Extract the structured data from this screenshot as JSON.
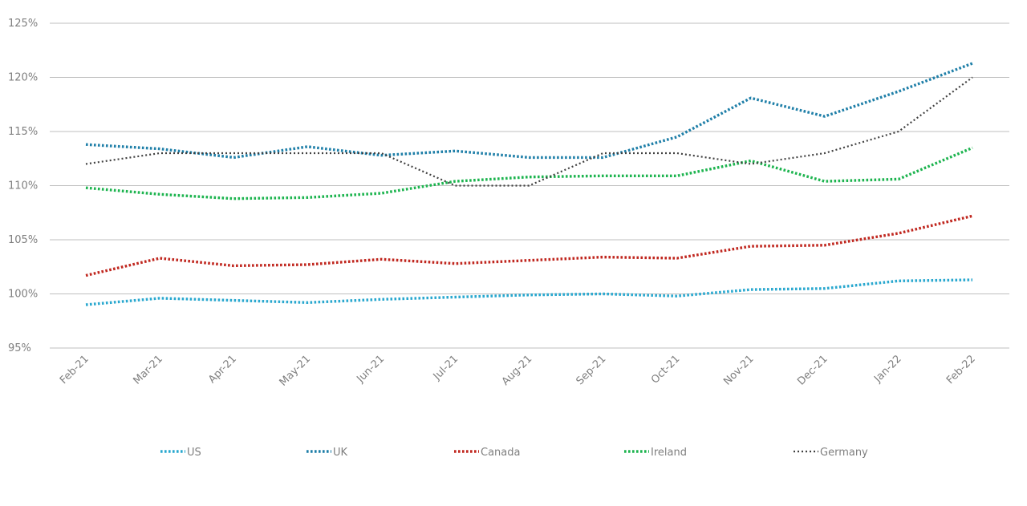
{
  "chart_data": {
    "type": "line",
    "title": "",
    "xlabel": "",
    "ylabel": "",
    "categories": [
      "Feb-21",
      "Mar-21",
      "Apr-21",
      "May-21",
      "Jun-21",
      "Jul-21",
      "Aug-21",
      "Sep-21",
      "Oct-21",
      "Nov-21",
      "Dec-21",
      "Jan-22",
      "Feb-22"
    ],
    "ylim": [
      95,
      125
    ],
    "yticks": [
      95,
      100,
      105,
      110,
      115,
      120,
      125
    ],
    "ytick_labels": [
      "95%",
      "100%",
      "105%",
      "110%",
      "115%",
      "120%",
      "125%"
    ],
    "grid": "horizontal",
    "legend_position": "bottom",
    "series": [
      {
        "name": "US",
        "color": "#2aa8cf",
        "style": "dotted",
        "values": [
          99.0,
          99.6,
          99.4,
          99.2,
          99.5,
          99.7,
          99.9,
          100.0,
          99.8,
          100.4,
          100.5,
          101.2,
          101.3
        ]
      },
      {
        "name": "UK",
        "color": "#1f7fa8",
        "style": "dotted",
        "values": [
          113.8,
          113.4,
          112.6,
          113.6,
          112.8,
          113.2,
          112.6,
          112.6,
          114.5,
          118.1,
          116.4,
          118.7,
          121.3
        ]
      },
      {
        "name": "Canada",
        "color": "#c0271f",
        "style": "dotted",
        "values": [
          101.7,
          103.3,
          102.6,
          102.7,
          103.2,
          102.8,
          103.1,
          103.4,
          103.3,
          104.4,
          104.5,
          105.6,
          107.2
        ]
      },
      {
        "name": "Ireland",
        "color": "#1db44f",
        "style": "dotted",
        "values": [
          109.8,
          109.2,
          108.8,
          108.9,
          109.3,
          110.4,
          110.8,
          110.9,
          110.9,
          112.3,
          110.4,
          110.6,
          113.5
        ]
      },
      {
        "name": "Germany",
        "color": "#404040",
        "style": "dotted-thin",
        "values": [
          112.0,
          113.0,
          113.0,
          113.0,
          113.0,
          110.0,
          110.0,
          113.0,
          113.0,
          112.0,
          113.0,
          115.0,
          120.0
        ]
      }
    ]
  }
}
